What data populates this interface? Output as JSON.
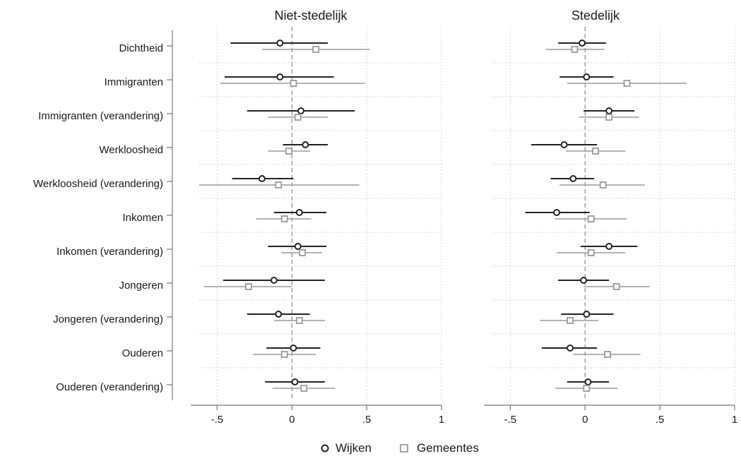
{
  "chart_data": {
    "type": "coefficient-plot",
    "panels": [
      {
        "title": "Niet-stedelijk",
        "series": [
          {
            "name": "Wijken",
            "estimates": [
              -0.08,
              -0.08,
              0.06,
              0.09,
              -0.2,
              0.05,
              0.04,
              -0.12,
              -0.09,
              0.01,
              0.02
            ],
            "ci_low": [
              -0.41,
              -0.45,
              -0.3,
              -0.06,
              -0.4,
              -0.12,
              -0.16,
              -0.46,
              -0.3,
              -0.17,
              -0.18
            ],
            "ci_high": [
              0.24,
              0.28,
              0.42,
              0.24,
              0.01,
              0.23,
              0.23,
              0.22,
              0.12,
              0.19,
              0.22
            ]
          },
          {
            "name": "Gemeentes",
            "estimates": [
              0.16,
              0.01,
              0.04,
              -0.02,
              -0.09,
              -0.05,
              0.07,
              -0.29,
              0.05,
              -0.05,
              0.08
            ],
            "ci_low": [
              -0.2,
              -0.48,
              -0.16,
              -0.16,
              -0.62,
              -0.24,
              -0.07,
              -0.59,
              -0.12,
              -0.26,
              -0.13
            ],
            "ci_high": [
              0.52,
              0.49,
              0.24,
              0.12,
              0.45,
              0.13,
              0.2,
              0.0,
              0.22,
              0.16,
              0.29
            ]
          }
        ]
      },
      {
        "title": "Stedelijk",
        "series": [
          {
            "name": "Wijken",
            "estimates": [
              -0.02,
              0.01,
              0.16,
              -0.14,
              -0.08,
              -0.19,
              0.16,
              -0.01,
              0.01,
              -0.1,
              0.02
            ],
            "ci_low": [
              -0.18,
              -0.17,
              -0.01,
              -0.36,
              -0.23,
              -0.4,
              -0.03,
              -0.18,
              -0.16,
              -0.29,
              -0.12
            ],
            "ci_high": [
              0.14,
              0.19,
              0.33,
              0.08,
              0.06,
              0.03,
              0.35,
              0.16,
              0.19,
              0.08,
              0.16
            ]
          },
          {
            "name": "Gemeentes",
            "estimates": [
              -0.07,
              0.28,
              0.16,
              0.07,
              0.12,
              0.04,
              0.04,
              0.21,
              -0.1,
              0.15,
              0.01
            ],
            "ci_low": [
              -0.26,
              -0.12,
              -0.04,
              -0.13,
              -0.17,
              -0.2,
              -0.19,
              -0.01,
              -0.3,
              -0.08,
              -0.2
            ],
            "ci_high": [
              0.13,
              0.68,
              0.36,
              0.27,
              0.4,
              0.28,
              0.27,
              0.43,
              0.09,
              0.37,
              0.22
            ]
          }
        ]
      }
    ],
    "categories": [
      "Dichtheid",
      "Immigranten",
      "Immigranten (verandering)",
      "Werkloosheid",
      "Werkloosheid (verandering)",
      "Inkomen",
      "Inkomen (verandering)",
      "Jongeren",
      "Jongeren (verandering)",
      "Ouderen",
      "Ouderen (verandering)"
    ],
    "x_ticks": [
      -0.5,
      0,
      0.5,
      1
    ],
    "x_tick_labels": [
      "-.5",
      "0",
      ".5",
      "1"
    ],
    "xlim": [
      -0.62,
      1.0
    ],
    "reference_line": 0,
    "grid": true,
    "legend": {
      "position": "bottom-center",
      "items": [
        "Wijken",
        "Gemeentes"
      ]
    },
    "colors": {
      "Wijken": "#222222",
      "Gemeentes": "#9a9a9a",
      "grid": "#c8c8c8",
      "zero_line": "#888888"
    }
  }
}
